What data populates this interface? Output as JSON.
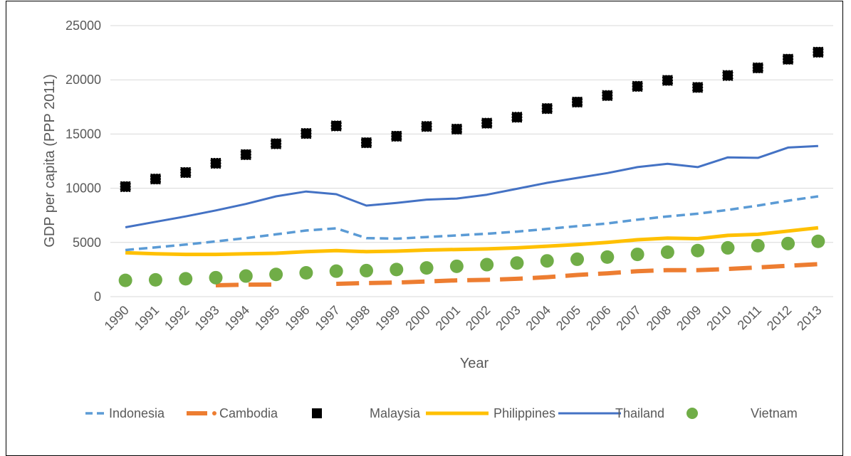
{
  "chart_data": {
    "type": "line",
    "title": "",
    "xlabel": "Year",
    "ylabel": "GDP per capita (PPP 2011)",
    "ylim": [
      0,
      25000
    ],
    "yticks": [
      "0",
      "5000",
      "10000",
      "15000",
      "20000",
      "25000"
    ],
    "grid": "horizontal",
    "legend_position": "bottom",
    "categories": [
      "1990",
      "1991",
      "1992",
      "1993",
      "1994",
      "1995",
      "1996",
      "1997",
      "1998",
      "1999",
      "2000",
      "2001",
      "2002",
      "2003",
      "2004",
      "2005",
      "2006",
      "2007",
      "2008",
      "2009",
      "2010",
      "2011",
      "2012",
      "2013"
    ],
    "series": [
      {
        "name": "Indonesia",
        "style": "dashed",
        "color": "#5B9BD5",
        "values": [
          4300,
          4550,
          4800,
          5100,
          5400,
          5750,
          6100,
          6300,
          5400,
          5350,
          5500,
          5650,
          5800,
          6000,
          6250,
          6500,
          6750,
          7100,
          7400,
          7650,
          8000,
          8400,
          8850,
          9250
        ]
      },
      {
        "name": "Cambodia",
        "style": "long-dash",
        "color": "#ED7D31",
        "values": [
          null,
          null,
          null,
          1050,
          1100,
          1120,
          null,
          1180,
          1250,
          1300,
          1400,
          1500,
          1550,
          1650,
          1800,
          2000,
          2150,
          2350,
          2450,
          2450,
          2550,
          2700,
          2850,
          3000
        ]
      },
      {
        "name": "Malaysia",
        "style": "square-markers",
        "color": "#000000",
        "values": [
          10150,
          10850,
          11450,
          12300,
          13100,
          14100,
          15050,
          15750,
          14200,
          14800,
          15700,
          15450,
          16000,
          16550,
          17350,
          17950,
          18550,
          19400,
          19950,
          19300,
          20400,
          21100,
          21900,
          22550
        ]
      },
      {
        "name": "Philippines",
        "style": "solid-thick",
        "color": "#FFC000",
        "values": [
          4050,
          3950,
          3900,
          3900,
          3950,
          4000,
          4150,
          4250,
          4150,
          4200,
          4300,
          4350,
          4400,
          4500,
          4650,
          4800,
          5000,
          5250,
          5400,
          5350,
          5650,
          5750,
          6050,
          6350
        ]
      },
      {
        "name": "Thailand",
        "style": "solid",
        "color": "#4472C4",
        "values": [
          6400,
          6900,
          7400,
          7950,
          8550,
          9250,
          9700,
          9450,
          8400,
          8650,
          8950,
          9050,
          9400,
          9950,
          10500,
          10950,
          11400,
          11950,
          12250,
          11950,
          12850,
          12800,
          13750,
          13900
        ]
      },
      {
        "name": "Vietnam",
        "style": "circle-markers",
        "color": "#70AD47",
        "values": [
          1500,
          1550,
          1650,
          1750,
          1900,
          2050,
          2200,
          2350,
          2400,
          2500,
          2650,
          2800,
          2950,
          3100,
          3300,
          3450,
          3650,
          3900,
          4100,
          4250,
          4500,
          4700,
          4900,
          5100
        ]
      }
    ]
  }
}
